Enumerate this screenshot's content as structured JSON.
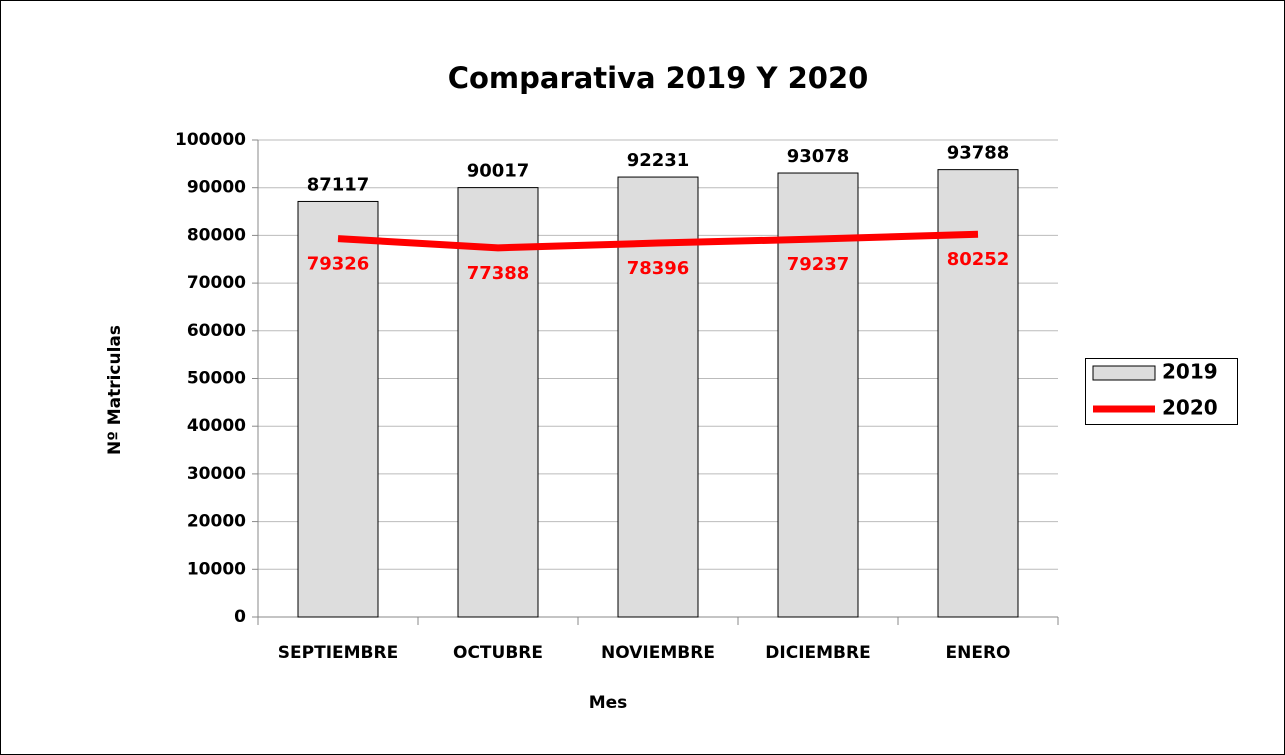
{
  "chart_data": {
    "type": "bar",
    "title": "Comparativa 2019 Y 2020",
    "x_label": "Mes",
    "y_label": "Nº Matriculas",
    "categories": [
      "SEPTIEMBRE",
      "OCTUBRE",
      "NOVIEMBRE",
      "DICIEMBRE",
      "ENERO"
    ],
    "series": [
      {
        "name": "2019",
        "type": "bar",
        "color": "#dddddd",
        "label_color": "#000000",
        "values": [
          87117,
          90017,
          92231,
          93078,
          93788
        ]
      },
      {
        "name": "2020",
        "type": "line",
        "color": "#ff0000",
        "label_color": "#ff0000",
        "values": [
          79326,
          77388,
          78396,
          79237,
          80252
        ]
      }
    ],
    "ylim": [
      0,
      100000
    ],
    "yticks": [
      0,
      10000,
      20000,
      30000,
      40000,
      50000,
      60000,
      70000,
      80000,
      90000,
      100000
    ],
    "grid": true,
    "legend": "right"
  }
}
